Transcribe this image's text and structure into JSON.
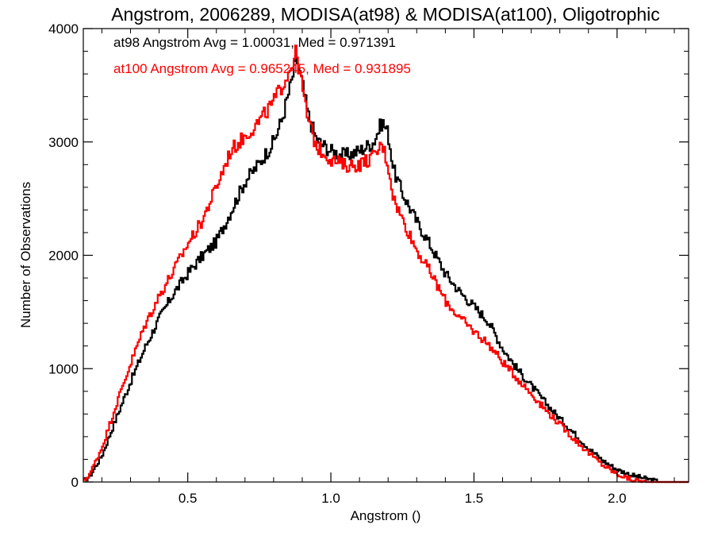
{
  "chart_data": {
    "type": "line",
    "title": "Angstrom, 2006289, MODISA(at98) & MODISA(at100), Oligotrophic",
    "xlabel": "Angstrom ()",
    "ylabel": "Number of Observations",
    "xlim": [
      0.135,
      2.25
    ],
    "ylim": [
      0,
      4000
    ],
    "x_ticks": [
      0.5,
      1.0,
      1.5,
      2.0
    ],
    "x_tick_labels": [
      "0.5",
      "1.0",
      "1.5",
      "2.0"
    ],
    "y_ticks": [
      0,
      1000,
      2000,
      3000,
      4000
    ],
    "y_tick_labels": [
      "0",
      "1000",
      "2000",
      "3000",
      "4000"
    ],
    "grid": false,
    "legend_position": "top-left",
    "series": [
      {
        "name": "at98",
        "label": "at98 Angstrom Avg = 1.00031, Med = 0.971391",
        "color": "#000000",
        "points": [
          [
            0.135,
            0
          ],
          [
            0.16,
            60
          ],
          [
            0.2,
            230
          ],
          [
            0.25,
            560
          ],
          [
            0.3,
            880
          ],
          [
            0.35,
            1180
          ],
          [
            0.4,
            1440
          ],
          [
            0.45,
            1660
          ],
          [
            0.5,
            1840
          ],
          [
            0.55,
            1990
          ],
          [
            0.6,
            2120
          ],
          [
            0.65,
            2380
          ],
          [
            0.7,
            2650
          ],
          [
            0.75,
            2810
          ],
          [
            0.8,
            3000
          ],
          [
            0.83,
            3200
          ],
          [
            0.86,
            3500
          ],
          [
            0.88,
            3740
          ],
          [
            0.9,
            3520
          ],
          [
            0.92,
            3250
          ],
          [
            0.95,
            3020
          ],
          [
            1.0,
            2920
          ],
          [
            1.05,
            2880
          ],
          [
            1.1,
            2920
          ],
          [
            1.15,
            3000
          ],
          [
            1.18,
            3180
          ],
          [
            1.2,
            3080
          ],
          [
            1.22,
            2750
          ],
          [
            1.25,
            2550
          ],
          [
            1.3,
            2300
          ],
          [
            1.35,
            2080
          ],
          [
            1.4,
            1840
          ],
          [
            1.45,
            1680
          ],
          [
            1.5,
            1550
          ],
          [
            1.55,
            1420
          ],
          [
            1.6,
            1180
          ],
          [
            1.65,
            1000
          ],
          [
            1.7,
            850
          ],
          [
            1.75,
            700
          ],
          [
            1.8,
            560
          ],
          [
            1.85,
            430
          ],
          [
            1.9,
            300
          ],
          [
            1.95,
            190
          ],
          [
            2.0,
            110
          ],
          [
            2.05,
            60
          ],
          [
            2.1,
            30
          ],
          [
            2.15,
            0
          ],
          [
            2.25,
            0
          ]
        ]
      },
      {
        "name": "at100",
        "label": "at100 Angstrom Avg = 0.965245, Med = 0.931895",
        "color": "#ff0000",
        "points": [
          [
            0.135,
            0
          ],
          [
            0.16,
            80
          ],
          [
            0.2,
            300
          ],
          [
            0.25,
            680
          ],
          [
            0.3,
            1040
          ],
          [
            0.35,
            1380
          ],
          [
            0.4,
            1640
          ],
          [
            0.45,
            1860
          ],
          [
            0.5,
            2100
          ],
          [
            0.55,
            2300
          ],
          [
            0.6,
            2600
          ],
          [
            0.65,
            2920
          ],
          [
            0.7,
            3050
          ],
          [
            0.75,
            3180
          ],
          [
            0.8,
            3350
          ],
          [
            0.85,
            3600
          ],
          [
            0.88,
            3790
          ],
          [
            0.9,
            3480
          ],
          [
            0.92,
            3200
          ],
          [
            0.95,
            2960
          ],
          [
            1.0,
            2850
          ],
          [
            1.05,
            2790
          ],
          [
            1.1,
            2800
          ],
          [
            1.15,
            2870
          ],
          [
            1.18,
            2980
          ],
          [
            1.2,
            2800
          ],
          [
            1.22,
            2500
          ],
          [
            1.25,
            2320
          ],
          [
            1.3,
            2050
          ],
          [
            1.35,
            1840
          ],
          [
            1.4,
            1600
          ],
          [
            1.45,
            1450
          ],
          [
            1.5,
            1330
          ],
          [
            1.55,
            1220
          ],
          [
            1.6,
            1060
          ],
          [
            1.65,
            920
          ],
          [
            1.7,
            780
          ],
          [
            1.75,
            640
          ],
          [
            1.8,
            510
          ],
          [
            1.85,
            380
          ],
          [
            1.9,
            260
          ],
          [
            1.95,
            150
          ],
          [
            2.0,
            70
          ],
          [
            2.05,
            20
          ],
          [
            2.1,
            0
          ],
          [
            2.25,
            0
          ]
        ]
      }
    ]
  }
}
